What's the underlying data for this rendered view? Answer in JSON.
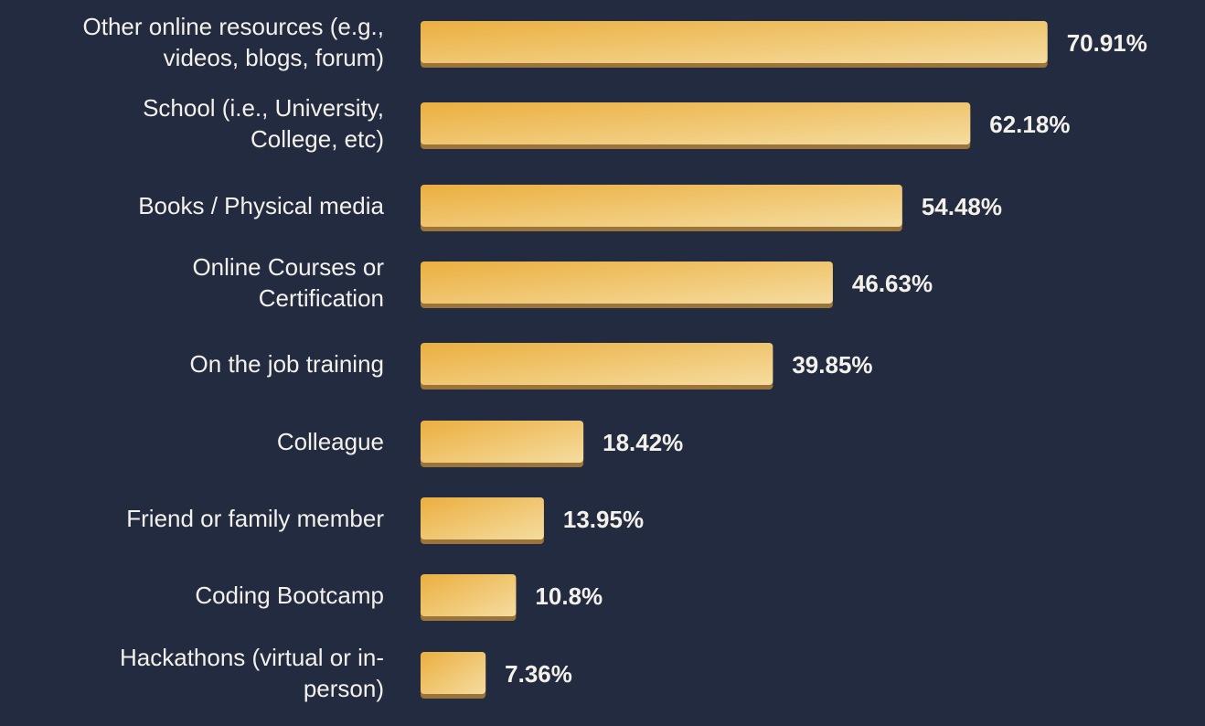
{
  "chart_data": {
    "type": "bar",
    "orientation": "horizontal",
    "categories": [
      "Other online resources (e.g., videos, blogs, forum)",
      "School (i.e., University, College, etc)",
      "Books / Physical media",
      "Online Courses or Certification",
      "On the job training",
      "Colleague",
      "Friend or family member",
      "Coding Bootcamp",
      "Hackathons (virtual or in-person)"
    ],
    "category_label_lines": [
      [
        "Other online resources (e.g.,",
        "videos, blogs, forum)"
      ],
      [
        "School (i.e., University,",
        "College, etc)"
      ],
      [
        "Books / Physical media"
      ],
      [
        "Online Courses or",
        "Certification"
      ],
      [
        "On the job training"
      ],
      [
        "Colleague"
      ],
      [
        "Friend or family member"
      ],
      [
        "Coding Bootcamp"
      ],
      [
        "Hackathons (virtual or in-",
        "person)"
      ]
    ],
    "values": [
      70.91,
      62.18,
      54.48,
      46.63,
      39.85,
      18.42,
      13.95,
      10.8,
      7.36
    ],
    "value_labels": [
      "70.91%",
      "62.18%",
      "54.48%",
      "46.63%",
      "39.85%",
      "18.42%",
      "13.95%",
      "10.8%",
      "7.36%"
    ],
    "unit": "%",
    "xlim": [
      0,
      100
    ],
    "grid": false,
    "legend": "none",
    "colors": {
      "background": "#232b41",
      "bar_start": "#ebaf3f",
      "bar_end": "#f5dca0",
      "bar_shadow": "#9a7438",
      "text": "#f4f1ea"
    }
  }
}
